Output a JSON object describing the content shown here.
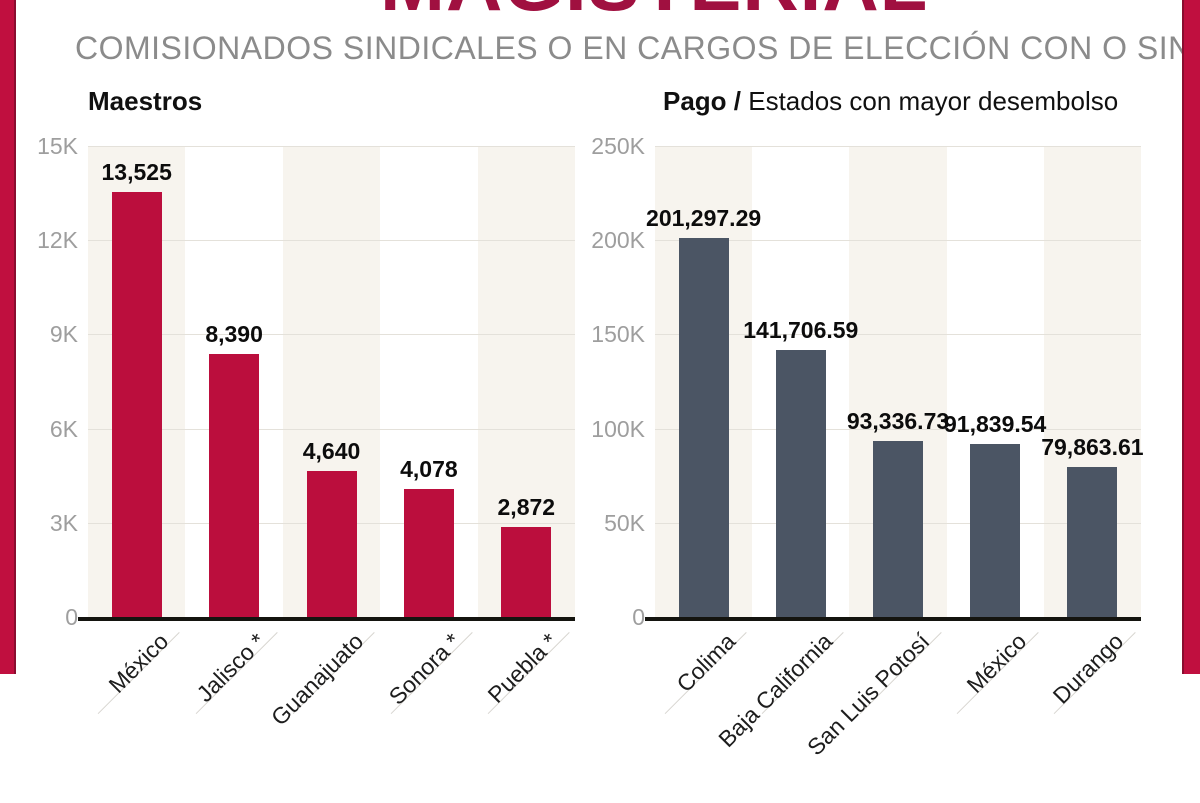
{
  "header": {
    "title": "MAGISTERIAL",
    "subtitle": "COMISIONADOS SINDICALES O EN CARGOS DE ELECCIÓN CON O SIN PAGO"
  },
  "theme": {
    "accent": "#c00f3f",
    "accent_dark": "#8a0d30",
    "title_color": "#a01040",
    "stripe_color": "#f7f4ee",
    "gridline_color": "#e4e1da",
    "axis_color": "#14140f",
    "ytick_color": "#9e9e9e",
    "subtitle_color": "#8b8b8b"
  },
  "chart_data": [
    {
      "type": "bar",
      "title_bold": "Maestros",
      "title_rest": "",
      "categories": [
        "México",
        "Jalisco *",
        "Guanajuato",
        "Sonora *",
        "Puebla *"
      ],
      "values": [
        13525,
        8390,
        4640,
        4078,
        2872
      ],
      "value_labels": [
        "13,525",
        "8,390",
        "4,640",
        "4,078",
        "2,872"
      ],
      "yticks": [
        "15K",
        "12K",
        "9K",
        "6K",
        "3K",
        "0"
      ],
      "ylim": [
        0,
        15000
      ],
      "bar_color": "#bb0e3d",
      "legend": "none",
      "grid": "horizontal"
    },
    {
      "type": "bar",
      "title_bold": "Pago /",
      "title_rest": " Estados con mayor desembolso",
      "categories": [
        "Colima",
        "Baja California",
        "San Luis Potosí",
        "México",
        "Durango"
      ],
      "values": [
        201297.29,
        141706.59,
        93336.73,
        91839.54,
        79863.61
      ],
      "value_labels": [
        "201,297.29",
        "141,706.59",
        "93,336.73",
        "91,839.54",
        "79,863.61"
      ],
      "yticks": [
        "250K",
        "200K",
        "150K",
        "100K",
        "50K",
        "0"
      ],
      "ylim": [
        0,
        250000
      ],
      "bar_color": "#4b5564",
      "legend": "none",
      "grid": "horizontal"
    }
  ]
}
